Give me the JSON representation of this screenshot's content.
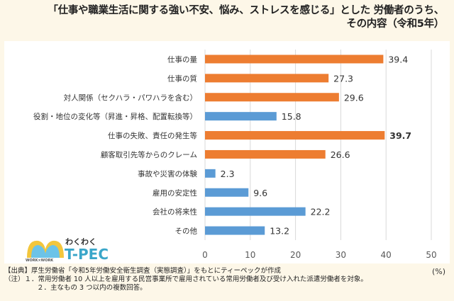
{
  "title": {
    "line1": "「仕事や職業生活に関する強い不安、悩み、ストレスを感じる」とした 労働者のうち、",
    "line2": "その内容（令和5年）"
  },
  "chart_data": {
    "type": "bar",
    "orientation": "horizontal",
    "categories": [
      "仕事の量",
      "仕事の質",
      "対人関係（セクハラ・パワハラを含む）",
      "役割・地位の変化等（昇進・昇格、配置転換等）",
      "仕事の失敗、責任の発生等",
      "顧客取引先等からのクレーム",
      "事故や災害の体験",
      "雇用の安定性",
      "会社の将来性",
      "その他"
    ],
    "values": [
      39.4,
      27.3,
      29.6,
      15.8,
      39.7,
      26.6,
      2.3,
      9.6,
      22.2,
      13.2
    ],
    "bar_colors": [
      "#ed7d31",
      "#ed7d31",
      "#ed7d31",
      "#5b9bd5",
      "#ed7d31",
      "#ed7d31",
      "#5b9bd5",
      "#5b9bd5",
      "#5b9bd5",
      "#5b9bd5"
    ],
    "bold_labels": [
      false,
      false,
      false,
      false,
      true,
      false,
      false,
      false,
      false,
      false
    ],
    "xlim": [
      0,
      50
    ],
    "xticks": [
      "0",
      "10",
      "20",
      "30",
      "40",
      "50"
    ],
    "unit": "(%)",
    "grid": true
  },
  "logo": {
    "top": "わくわく",
    "main": "T-PEC",
    "sub": "WORK×WORK"
  },
  "footer": {
    "source": "【出典】厚生労働省「令和5年労働安全衛生調査（実態調査）」をもとにティーペックが作成",
    "note1": "（注）１．常用労働者 10 人以上を雇用する民営事業所で雇用されている常用労働者及び受け入れた派遣労働者を対象。",
    "note2": "２．主なもの 3 つ以内の複数回答。"
  }
}
